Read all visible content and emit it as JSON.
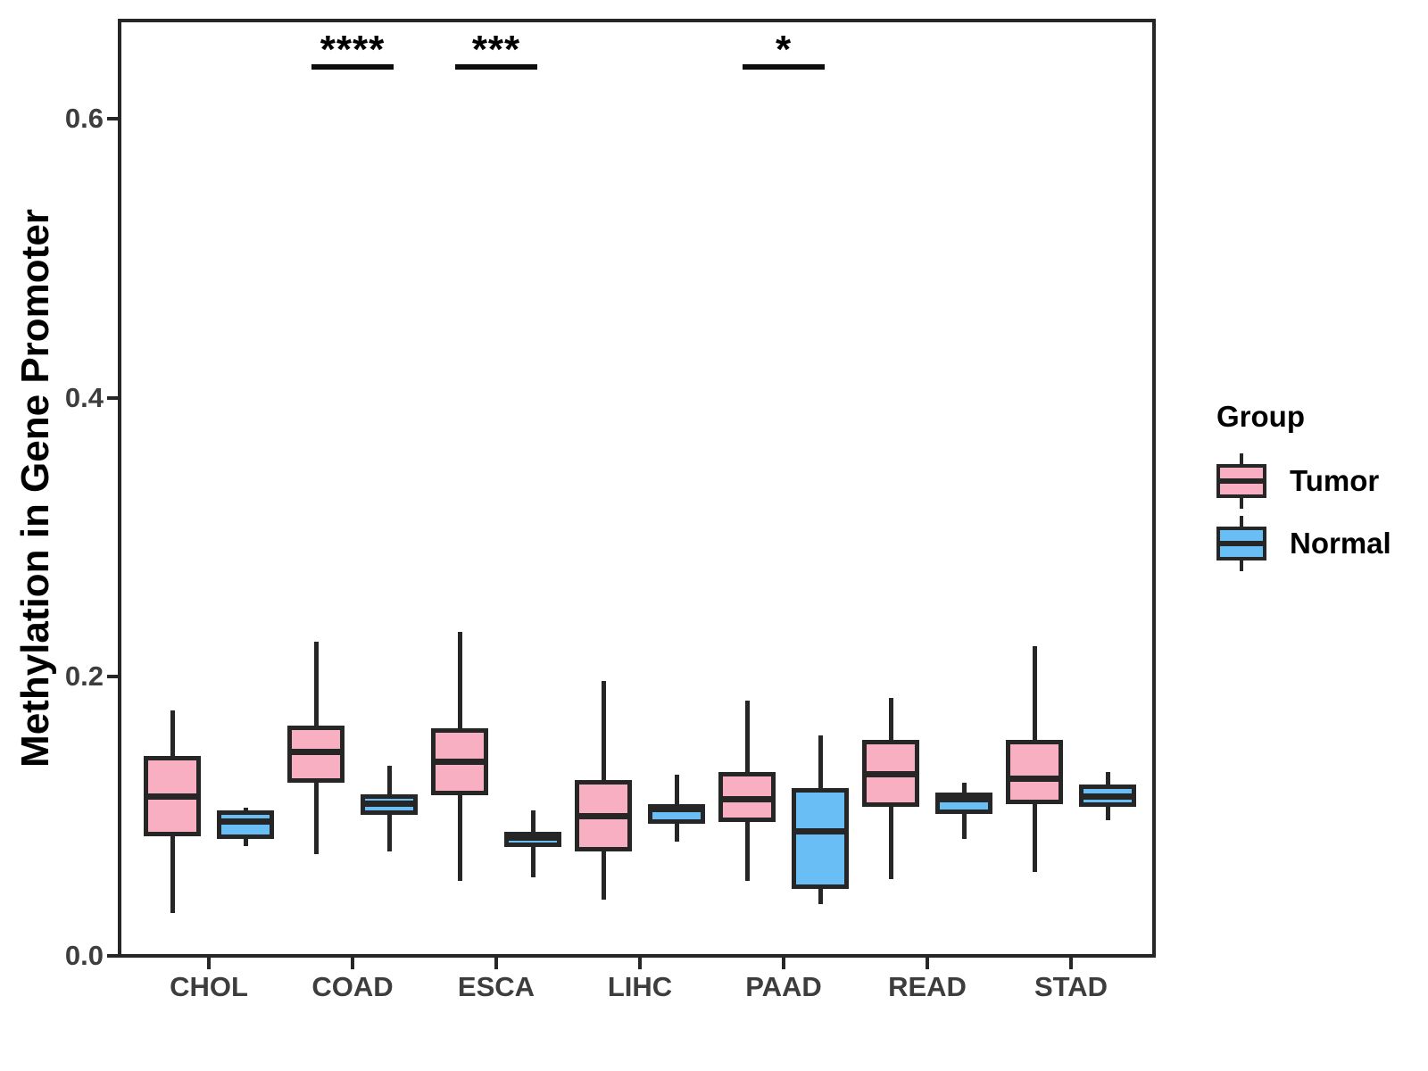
{
  "figure": {
    "y_axis": {
      "title": "Methylation in Gene Promoter",
      "tick_labels": [
        "0.0",
        "0.2",
        "0.4",
        "0.6"
      ],
      "tick_values": [
        0.0,
        0.2,
        0.4,
        0.6
      ]
    },
    "x_axis": {
      "categories": [
        "CHOL",
        "COAD",
        "ESCA",
        "LIHC",
        "PAAD",
        "READ",
        "STAD"
      ]
    },
    "legend": {
      "title": "Group",
      "entries": [
        {
          "label": "Tumor",
          "color": "#F9AFC2"
        },
        {
          "label": "Normal",
          "color": "#68BEF5"
        }
      ]
    },
    "colors": {
      "tumor_fill": "#F9AFC2",
      "normal_fill": "#68BEF5",
      "stroke": "#262626",
      "tick_text": "#3d3d3d",
      "title_text": "#000000"
    }
  },
  "chart_data": {
    "type": "boxplot",
    "title": "",
    "xlabel": "",
    "ylabel": "Methylation in Gene Promoter",
    "ylim": [
      0.0,
      0.67
    ],
    "y_ticks": [
      0.0,
      0.2,
      0.4,
      0.6
    ],
    "grid": false,
    "legend_position": "right",
    "categories": [
      "CHOL",
      "COAD",
      "ESCA",
      "LIHC",
      "PAAD",
      "READ",
      "STAD"
    ],
    "box_format": [
      "whisker_low",
      "q1",
      "median",
      "q3",
      "whisker_high"
    ],
    "series": [
      {
        "name": "Tumor",
        "color": "#F9AFC2",
        "boxes": [
          [
            0.031,
            0.086,
            0.114,
            0.143,
            0.176
          ],
          [
            0.073,
            0.124,
            0.146,
            0.165,
            0.225
          ],
          [
            0.054,
            0.115,
            0.139,
            0.163,
            0.232
          ],
          [
            0.04,
            0.075,
            0.1,
            0.126,
            0.197
          ],
          [
            0.054,
            0.096,
            0.112,
            0.132,
            0.183
          ],
          [
            0.055,
            0.107,
            0.13,
            0.155,
            0.185
          ],
          [
            0.06,
            0.109,
            0.127,
            0.155,
            0.222
          ]
        ]
      },
      {
        "name": "Normal",
        "color": "#68BEF5",
        "boxes": [
          [
            0.079,
            0.084,
            0.096,
            0.104,
            0.106
          ],
          [
            0.075,
            0.101,
            0.109,
            0.116,
            0.136
          ],
          [
            0.056,
            0.078,
            0.085,
            0.089,
            0.104
          ],
          [
            0.082,
            0.095,
            0.105,
            0.109,
            0.13
          ],
          [
            0.037,
            0.048,
            0.089,
            0.12,
            0.158
          ],
          [
            0.084,
            0.102,
            0.112,
            0.117,
            0.124
          ],
          [
            0.097,
            0.107,
            0.114,
            0.123,
            0.132
          ]
        ]
      }
    ],
    "significance": [
      {
        "category": "COAD",
        "label": "****"
      },
      {
        "category": "ESCA",
        "label": "***"
      },
      {
        "category": "PAAD",
        "label": "*"
      }
    ]
  }
}
